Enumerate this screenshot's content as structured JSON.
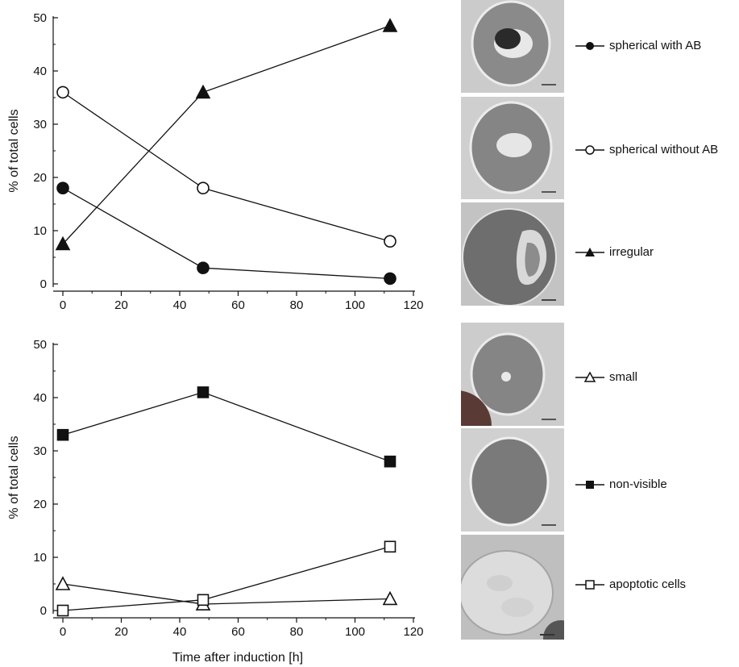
{
  "chart_data": [
    {
      "type": "line",
      "xlabel": "",
      "ylabel": "% of total cells",
      "xlim": [
        0,
        120
      ],
      "ylim": [
        0,
        50
      ],
      "x_ticks": [
        0,
        20,
        40,
        60,
        80,
        100,
        120
      ],
      "y_ticks": [
        0,
        10,
        20,
        30,
        40,
        50
      ],
      "x": [
        0,
        48,
        112
      ],
      "series": [
        {
          "name": "spherical with AB",
          "marker": "filled-circle",
          "values": [
            18,
            3,
            1
          ]
        },
        {
          "name": "spherical without AB",
          "marker": "open-circle",
          "values": [
            36,
            18,
            8
          ]
        },
        {
          "name": "irregular",
          "marker": "filled-triangle",
          "values": [
            7.5,
            36,
            48.5
          ]
        }
      ]
    },
    {
      "type": "line",
      "xlabel": "Time after induction [h]",
      "ylabel": "% of total cells",
      "xlim": [
        0,
        120
      ],
      "ylim": [
        0,
        50
      ],
      "x_ticks": [
        0,
        20,
        40,
        60,
        80,
        100,
        120
      ],
      "y_ticks": [
        0,
        10,
        20,
        30,
        40,
        50
      ],
      "x": [
        0,
        48,
        112
      ],
      "series": [
        {
          "name": "small",
          "marker": "open-triangle",
          "values": [
            5,
            1.2,
            2.2
          ]
        },
        {
          "name": "non-visible",
          "marker": "filled-square",
          "values": [
            33,
            41,
            28
          ]
        },
        {
          "name": "apoptotic cells",
          "marker": "open-square",
          "values": [
            0,
            2,
            12
          ]
        }
      ]
    }
  ],
  "legend": [
    {
      "label": "spherical with AB",
      "marker": "filled-circle"
    },
    {
      "label": "spherical without AB",
      "marker": "open-circle"
    },
    {
      "label": "irregular",
      "marker": "filled-triangle"
    },
    {
      "label": "small",
      "marker": "open-triangle"
    },
    {
      "label": "non-visible",
      "marker": "filled-square"
    },
    {
      "label": "apoptotic cells",
      "marker": "open-square"
    }
  ],
  "micrographs": [
    {
      "depicts": "spherical cell with apoptotic body"
    },
    {
      "depicts": "spherical cell without apoptotic body"
    },
    {
      "depicts": "irregular cell"
    },
    {
      "depicts": "small cell"
    },
    {
      "depicts": "non-visible cell"
    },
    {
      "depicts": "apoptotic cell"
    }
  ],
  "colors": {
    "ink": "#111111",
    "micro_background": "#c9c9c9",
    "cell_body": "#7d7d7d"
  }
}
